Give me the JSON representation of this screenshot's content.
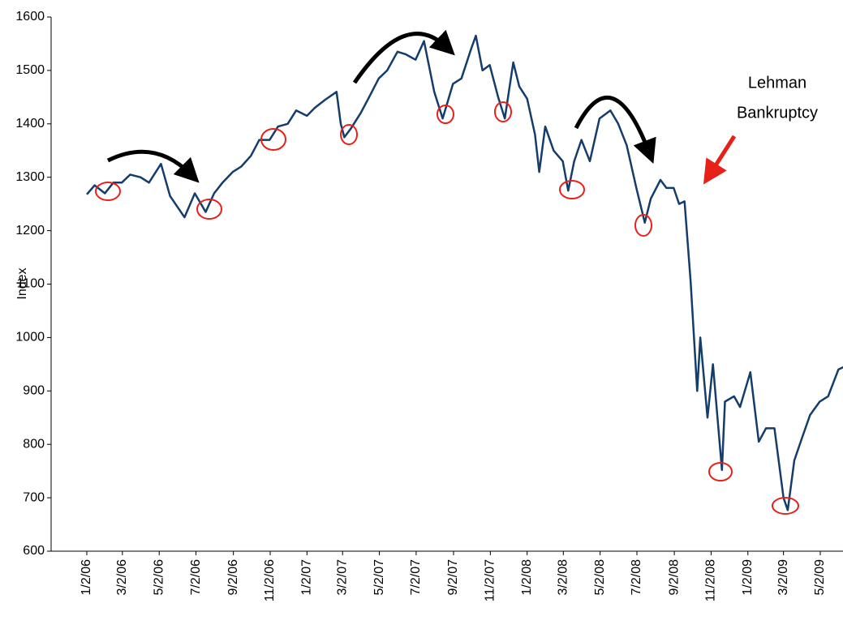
{
  "chart_data": {
    "type": "line",
    "y_label": "Index",
    "annotation": [
      "Lehman",
      "Bankruptcy"
    ],
    "ylim": [
      600,
      1600
    ],
    "yticks": [
      600,
      700,
      800,
      900,
      1000,
      1100,
      1200,
      1300,
      1400,
      1500,
      1600
    ],
    "xticks": [
      "1/2/06",
      "3/2/06",
      "5/2/06",
      "7/2/06",
      "9/2/06",
      "11/2/06",
      "1/2/07",
      "3/2/07",
      "5/2/07",
      "7/2/07",
      "9/2/07",
      "11/2/07",
      "1/2/08",
      "3/2/08",
      "5/2/08",
      "7/2/08",
      "9/2/08",
      "11/2/08",
      "1/2/09",
      "3/2/09",
      "5/2/09"
    ],
    "series": [
      {
        "name": "Index",
        "color": "#143d6b",
        "x": [
          "1/2/06",
          "1/15/06",
          "2/1/06",
          "2/15/06",
          "3/1/06",
          "3/15/06",
          "4/1/06",
          "4/15/06",
          "5/5/06",
          "5/20/06",
          "6/13/06",
          "6/30/06",
          "7/18/06",
          "8/1/06",
          "8/15/06",
          "9/1/06",
          "9/15/06",
          "10/1/06",
          "10/15/06",
          "11/1/06",
          "11/15/06",
          "12/1/06",
          "12/15/06",
          "1/2/07",
          "1/15/07",
          "2/1/07",
          "2/20/07",
          "2/27/07",
          "3/5/07",
          "3/15/07",
          "4/1/07",
          "4/15/07",
          "5/1/07",
          "5/15/07",
          "6/1/07",
          "6/15/07",
          "7/1/07",
          "7/15/07",
          "8/1/07",
          "8/15/07",
          "9/1/07",
          "9/15/07",
          "10/1/07",
          "10/9/07",
          "10/20/07",
          "11/1/07",
          "11/15/07",
          "11/26/07",
          "12/10/07",
          "12/20/07",
          "1/2/08",
          "1/15/08",
          "1/22/08",
          "2/1/08",
          "2/15/08",
          "3/1/08",
          "3/10/08",
          "3/20/08",
          "4/1/08",
          "4/15/08",
          "5/1/08",
          "5/19/08",
          "6/1/08",
          "6/15/08",
          "7/1/08",
          "7/15/08",
          "7/25/08",
          "8/10/08",
          "8/20/08",
          "9/1/08",
          "9/10/08",
          "9/19/08",
          "9/29/08",
          "10/10/08",
          "10/15/08",
          "10/27/08",
          "11/5/08",
          "11/20/08",
          "11/25/08",
          "12/10/08",
          "12/20/08",
          "1/6/09",
          "1/20/09",
          "2/1/09",
          "2/15/09",
          "3/2/09",
          "3/9/09",
          "3/20/09",
          "4/1/09",
          "4/15/09",
          "5/1/09",
          "5/15/09",
          "6/1/09",
          "6/10/09"
        ],
        "values": [
          1268,
          1285,
          1270,
          1290,
          1290,
          1305,
          1300,
          1290,
          1325,
          1265,
          1225,
          1270,
          1235,
          1270,
          1290,
          1310,
          1320,
          1340,
          1370,
          1370,
          1395,
          1400,
          1425,
          1415,
          1430,
          1445,
          1460,
          1400,
          1375,
          1390,
          1420,
          1450,
          1485,
          1500,
          1535,
          1530,
          1520,
          1555,
          1460,
          1410,
          1475,
          1485,
          1540,
          1565,
          1500,
          1510,
          1450,
          1410,
          1515,
          1470,
          1447,
          1380,
          1310,
          1395,
          1350,
          1330,
          1275,
          1330,
          1370,
          1330,
          1410,
          1425,
          1400,
          1360,
          1280,
          1215,
          1260,
          1295,
          1280,
          1280,
          1250,
          1255,
          1105,
          900,
          1000,
          850,
          950,
          752,
          880,
          890,
          870,
          935,
          805,
          830,
          830,
          700,
          677,
          770,
          810,
          855,
          880,
          890,
          940,
          945
        ]
      }
    ]
  }
}
